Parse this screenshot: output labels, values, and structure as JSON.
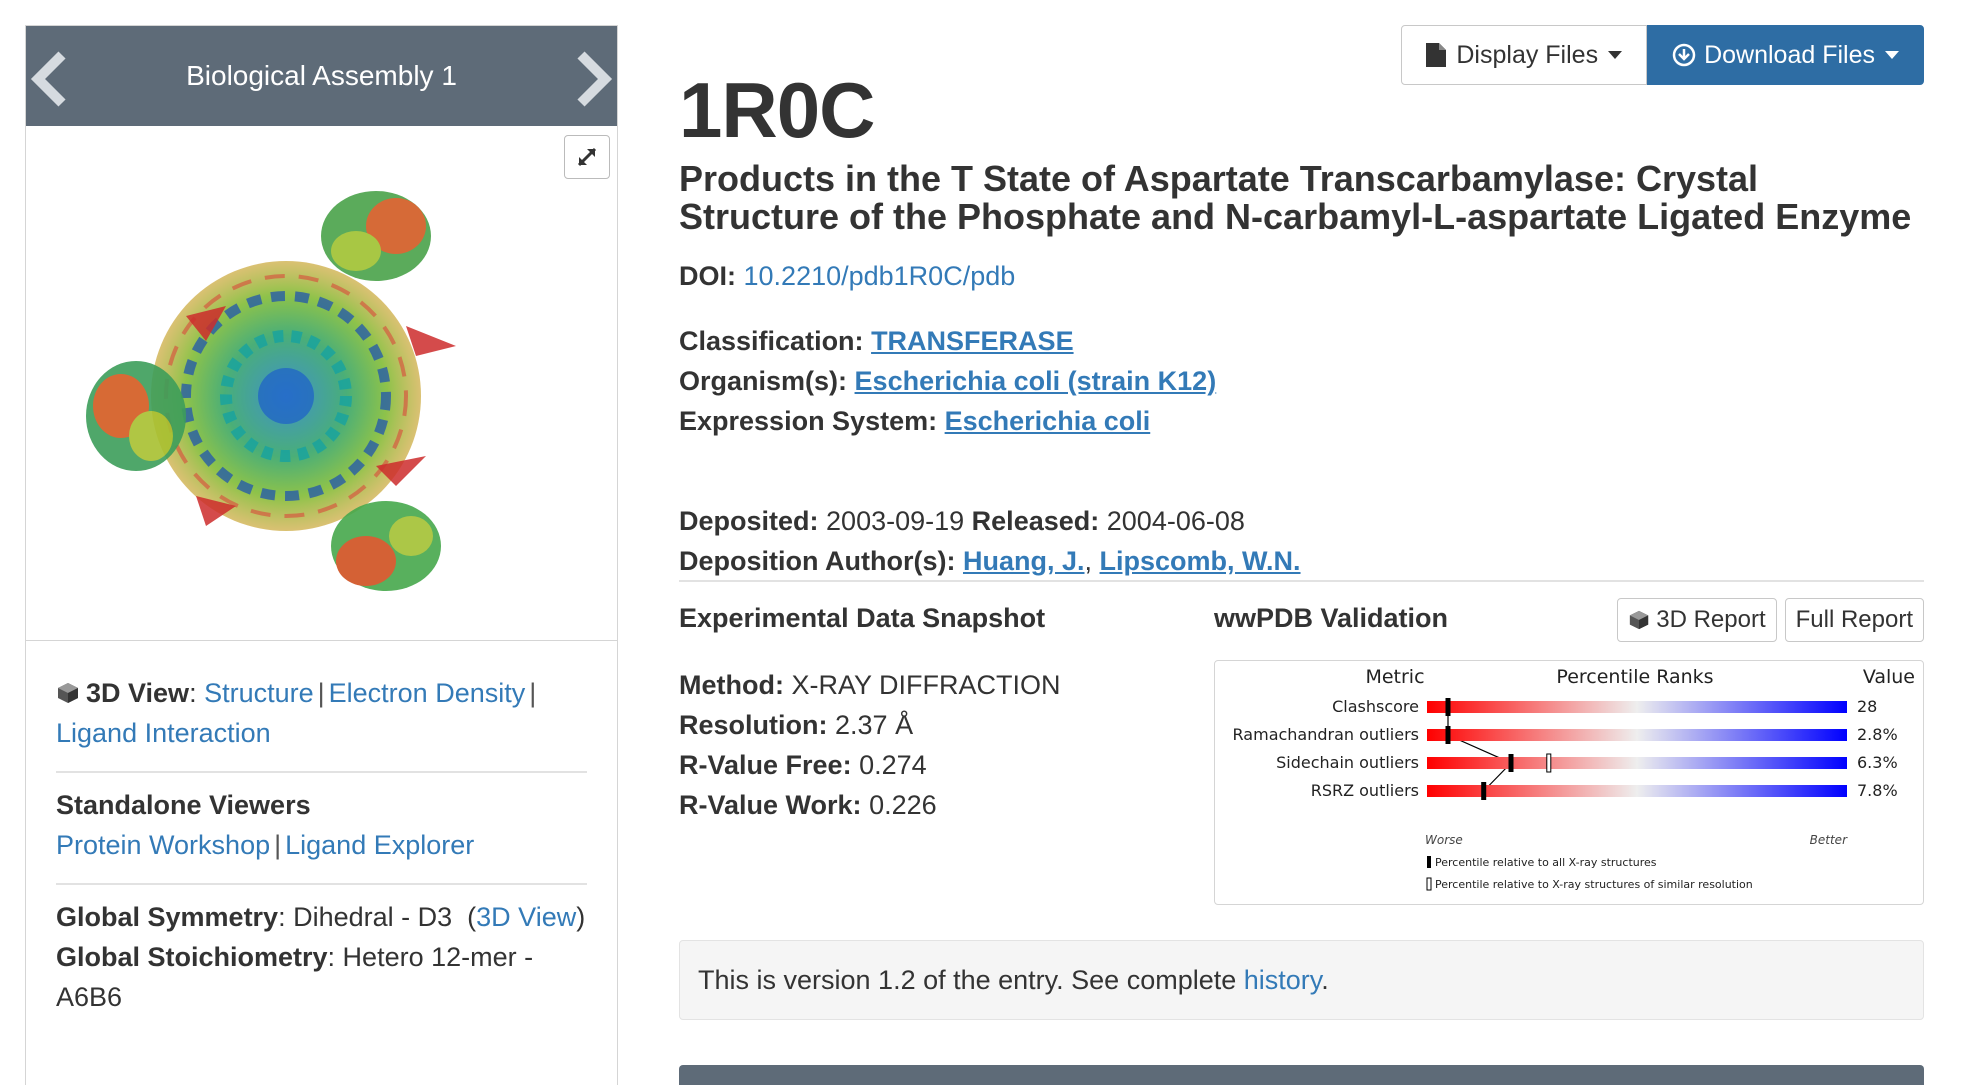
{
  "assembly": {
    "title": "Biological Assembly 1"
  },
  "left_info": {
    "view_label": "3D View",
    "view_links": [
      "Structure",
      "Electron Density",
      "Ligand Interaction"
    ],
    "standalone_label": "Standalone Viewers",
    "standalone_links": [
      "Protein Workshop",
      "Ligand Explorer"
    ],
    "symmetry_label": "Global Symmetry",
    "symmetry_value": ": Dihedral - D3",
    "symmetry_link": "3D View",
    "stoich_label": "Global Stoichiometry",
    "stoich_value": ": Hetero 12-mer - A6B6"
  },
  "toolbar": {
    "display_files": "Display Files",
    "download_files": "Download Files"
  },
  "entry": {
    "id": "1R0C",
    "title": "Products in the T State of Aspartate Transcarbamylase: Crystal Structure of the Phosphate and N-carbamyl-L-aspartate Ligated Enzyme",
    "doi_label": "DOI:",
    "doi_value": "10.2210/pdb1R0C/pdb",
    "classification_label": "Classification:",
    "classification_value": "TRANSFERASE",
    "organism_label": "Organism(s):",
    "organism_value": "Escherichia coli (strain K12)",
    "expression_label": "Expression System:",
    "expression_value": "Escherichia coli",
    "deposited_label": "Deposited:",
    "deposited_value": "2003-09-19",
    "released_label": "Released:",
    "released_value": "2004-06-08",
    "authors_label": "Deposition Author(s):",
    "authors": [
      "Huang, J.",
      "Lipscomb, W.N."
    ]
  },
  "experimental": {
    "title": "Experimental Data Snapshot",
    "method_label": "Method:",
    "method_value": "X-RAY DIFFRACTION",
    "resolution_label": "Resolution:",
    "resolution_value": "2.37 Å",
    "rfree_label": "R-Value Free:",
    "rfree_value": "0.274",
    "rwork_label": "R-Value Work:",
    "rwork_value": "0.226"
  },
  "validation": {
    "title": "wwPDB Validation",
    "report_3d": "3D Report",
    "report_full": "Full Report",
    "col_metric": "Metric",
    "col_ranks": "Percentile Ranks",
    "col_value": "Value",
    "worse": "Worse",
    "better": "Better",
    "legend_all": "Percentile relative to all X-ray structures",
    "legend_similar": "Percentile relative to X-ray structures of similar resolution",
    "metrics": [
      {
        "name": "Clashscore",
        "value": "28",
        "pct_all": 0.05,
        "pct_similar": 0.05
      },
      {
        "name": "Ramachandran outliers",
        "value": "2.8%",
        "pct_all": 0.05,
        "pct_similar": 0.05
      },
      {
        "name": "Sidechain outliers",
        "value": "6.3%",
        "pct_all": 0.2,
        "pct_similar": 0.29
      },
      {
        "name": "RSRZ outliers",
        "value": "7.8%",
        "pct_all": 0.135,
        "pct_similar": 0.135
      }
    ],
    "colors": {
      "worse": "#ff0000",
      "mid": "#eeeeee",
      "better": "#0000ff"
    }
  },
  "version": {
    "text": "This is version 1.2 of the entry. See complete ",
    "link": "history",
    "end": "."
  }
}
